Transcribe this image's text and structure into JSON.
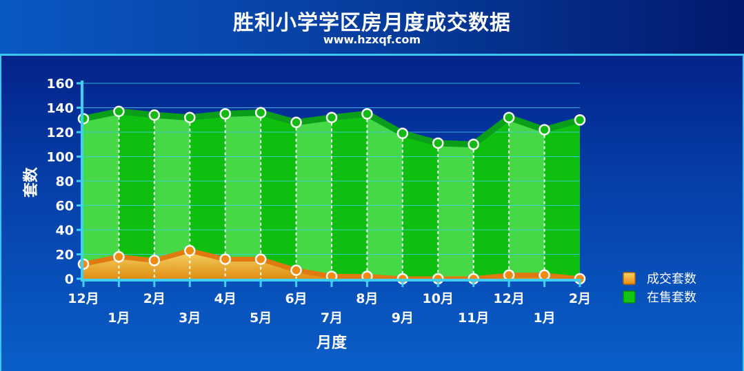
{
  "header": {
    "title": "胜利小学学区房月度成交数据",
    "subtitle": "www.hzxqf.com"
  },
  "chart_data": {
    "type": "area",
    "title": "胜利小学学区房月度成交数据",
    "xlabel": "月度",
    "ylabel": "套数",
    "ylim": [
      0,
      160
    ],
    "yticks": [
      "0",
      "20",
      "40",
      "60",
      "80",
      "100",
      "120",
      "140",
      "160"
    ],
    "categories": [
      "12月",
      "1月",
      "2月",
      "3月",
      "4月",
      "5月",
      "6月",
      "7月",
      "8月",
      "9月",
      "10月",
      "11月",
      "12月",
      "1月",
      "2月"
    ],
    "series": [
      {
        "name": "成交套数",
        "values": [
          12,
          18,
          15,
          23,
          16,
          16,
          7,
          2,
          2,
          0,
          0,
          0,
          3,
          3,
          0
        ]
      },
      {
        "name": "在售套数",
        "values": [
          131,
          137,
          134,
          132,
          135,
          136,
          128,
          132,
          135,
          119,
          111,
          110,
          132,
          122,
          130
        ]
      }
    ],
    "legend_position": "right",
    "grid": true
  },
  "colors": {
    "sold": "#f29a18",
    "for_sale": "#14c614",
    "grid": "#3fd0f5"
  }
}
